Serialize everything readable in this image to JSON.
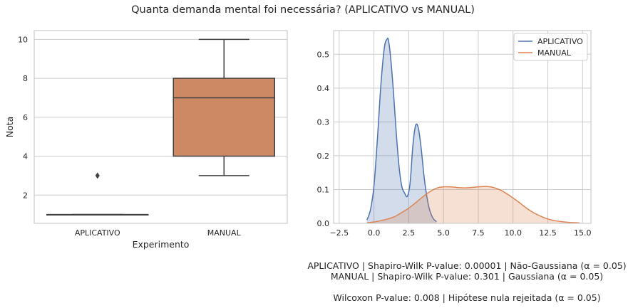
{
  "figure": {
    "title": "Quanta demanda mental foi necessária? (APLICATIVO vs MANUAL)"
  },
  "colors": {
    "aplicativo": "#4c72b0",
    "manual": "#dd8452",
    "grid": "#cccccc",
    "box_edge": "#3f3f3f"
  },
  "chart_data": [
    {
      "type": "box",
      "xlabel": "Experimento",
      "ylabel": "Nota",
      "categories": [
        "APLICATIVO",
        "MANUAL"
      ],
      "ylim": [
        0.55,
        10.45
      ],
      "yticks": [
        "2",
        "4",
        "6",
        "8",
        "10"
      ],
      "grid": true,
      "boxes": [
        {
          "category": "APLICATIVO",
          "whisker_low": 1,
          "q1": 1,
          "median": 1,
          "q3": 1,
          "whisker_high": 1,
          "outliers": [
            3
          ],
          "color": "#4c72b0"
        },
        {
          "category": "MANUAL",
          "whisker_low": 3,
          "q1": 4,
          "median": 7,
          "q3": 8,
          "whisker_high": 10,
          "outliers": [],
          "color": "#dd8452"
        }
      ]
    },
    {
      "type": "area",
      "xlim": [
        -2.9,
        15.6
      ],
      "ylim": [
        0,
        0.57
      ],
      "xticks": [
        "−2.5",
        "0.0",
        "2.5",
        "5.0",
        "7.5",
        "10.0",
        "12.5",
        "15.0"
      ],
      "yticks": [
        "0.0",
        "0.1",
        "0.2",
        "0.3",
        "0.4",
        "0.5"
      ],
      "grid": true,
      "legend_position": "top-right",
      "series": [
        {
          "name": "APLICATIVO",
          "color": "#4c72b0",
          "x": [
            -0.5,
            -0.25,
            0.0,
            0.25,
            0.5,
            0.75,
            0.95,
            1.05,
            1.2,
            1.4,
            1.6,
            1.8,
            2.0,
            2.2,
            2.4,
            2.6,
            2.8,
            3.0,
            3.2,
            3.4,
            3.6,
            3.8,
            4.0,
            4.25,
            4.5
          ],
          "y": [
            0.01,
            0.04,
            0.11,
            0.25,
            0.41,
            0.52,
            0.545,
            0.54,
            0.49,
            0.39,
            0.27,
            0.17,
            0.11,
            0.09,
            0.08,
            0.12,
            0.23,
            0.29,
            0.28,
            0.22,
            0.14,
            0.08,
            0.04,
            0.015,
            0.005
          ]
        },
        {
          "name": "MANUAL",
          "color": "#dd8452",
          "x": [
            -0.5,
            0.0,
            0.5,
            1.0,
            1.5,
            2.0,
            2.5,
            3.0,
            3.5,
            4.0,
            4.5,
            5.0,
            5.5,
            6.0,
            6.5,
            7.0,
            7.5,
            8.0,
            8.5,
            9.0,
            9.5,
            10.0,
            10.5,
            11.0,
            11.5,
            12.0,
            12.5,
            13.0,
            13.5,
            14.0,
            14.5,
            14.8
          ],
          "y": [
            0.002,
            0.004,
            0.008,
            0.013,
            0.02,
            0.032,
            0.045,
            0.061,
            0.078,
            0.093,
            0.104,
            0.108,
            0.108,
            0.106,
            0.105,
            0.106,
            0.108,
            0.109,
            0.107,
            0.1,
            0.089,
            0.075,
            0.06,
            0.044,
            0.031,
            0.021,
            0.013,
            0.008,
            0.005,
            0.003,
            0.002,
            0.001
          ]
        }
      ]
    }
  ],
  "stats": {
    "line1": "APLICATIVO | Shapiro-Wilk P-value: 0.00001 | Não-Gaussiana (α = 0.05)",
    "line2": "MANUAL | Shapiro-Wilk P-value: 0.301 | Gaussiana (α = 0.05)",
    "line3": "Wilcoxon P-value: 0.008 | Hipótese nula rejeitada (α = 0.05)"
  }
}
